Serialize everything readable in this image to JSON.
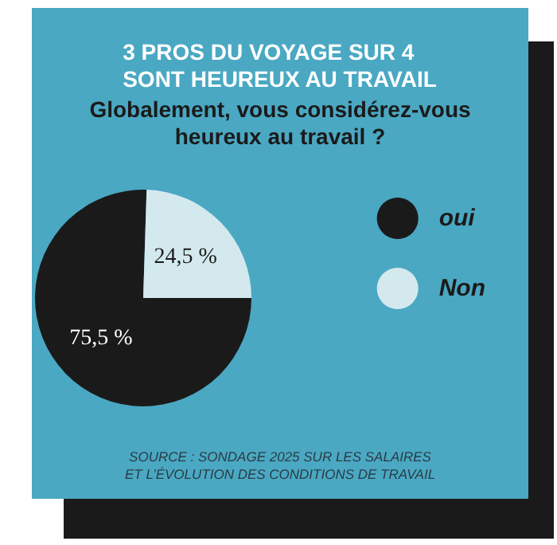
{
  "chart_data": {
    "type": "pie",
    "title": "3 PROS DU VOYAGE SUR 4\nSONT HEUREUX AU TRAVAIL",
    "subtitle": "Globalement, vous considérez-vous\nheureux au travail ?",
    "categories": [
      "oui",
      "Non"
    ],
    "values": [
      75.5,
      24.5
    ],
    "colors": [
      "#1b1a1a",
      "#d3e9ee"
    ],
    "value_labels": [
      "75,5 %",
      "24,5 %"
    ],
    "legend": "right",
    "annotations": [
      "SOURCE : SONDAGE 2025 SUR LES SALAIRES\nET L’ÉVOLUTION DES CONDITIONS DE TRAVAIL"
    ]
  }
}
